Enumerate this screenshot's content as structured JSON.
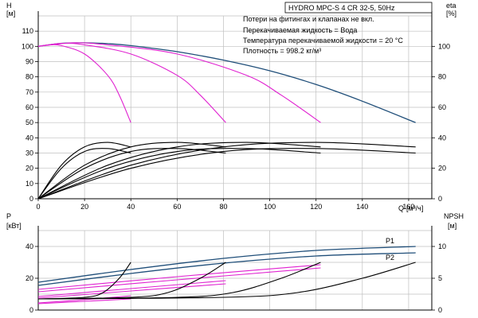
{
  "chart_data": [
    {
      "type": "line",
      "panel": "head",
      "title": "HYDRO MPC-S 4 CR 32-5, 50Hz",
      "info_lines": [
        "Потери на фитингах и клапанах не вкл.",
        "Перекачиваемая жидкость = Вода",
        "Температура перекачиваемой жидкости = 20 °C",
        "Плотность = 998.2 кг/м³"
      ],
      "ylabel": "H",
      "yunit": "[м]",
      "y2label": "eta",
      "y2unit": "[%]",
      "xlabel": "Q",
      "xunit": "[м³/ч]",
      "xlim": [
        0,
        170
      ],
      "ylim": [
        0,
        120
      ],
      "grid": true,
      "x_ticks": [
        "0",
        "20",
        "40",
        "60",
        "80",
        "100",
        "120",
        "140",
        "160"
      ],
      "y_ticks": [
        "0",
        "10",
        "20",
        "30",
        "40",
        "50",
        "60",
        "70",
        "80",
        "90",
        "100",
        "110"
      ],
      "y2_ticks": [
        "0",
        "20",
        "40",
        "60",
        "80",
        "100"
      ],
      "series": [
        {
          "color": "#1f4e79",
          "x": [
            0,
            10,
            20,
            30,
            40,
            60,
            80,
            100,
            120,
            140,
            163
          ],
          "y": [
            100,
            102,
            102.3,
            101.8,
            100.5,
            96.5,
            91,
            84,
            75,
            64,
            50
          ]
        },
        {
          "color": "#e020d0",
          "x": [
            0,
            5,
            10,
            20,
            30,
            35,
            40
          ],
          "y": [
            100,
            101,
            100.5,
            95,
            81,
            68,
            50
          ]
        },
        {
          "color": "#e020d0",
          "x": [
            0,
            10,
            20,
            40,
            60,
            70,
            81
          ],
          "y": [
            100,
            102,
            101,
            95,
            81,
            68,
            50
          ]
        },
        {
          "color": "#e020d0",
          "x": [
            0,
            15,
            30,
            60,
            90,
            105,
            122
          ],
          "y": [
            100,
            102.3,
            101,
            95,
            81,
            68,
            50
          ]
        },
        {
          "color": "#000000",
          "x": [
            0,
            10,
            20,
            30,
            40
          ],
          "y": [
            0,
            22,
            34,
            37,
            34
          ]
        },
        {
          "color": "#000000",
          "x": [
            0,
            20,
            40,
            60,
            81
          ],
          "y": [
            0,
            22,
            34,
            37,
            34
          ]
        },
        {
          "color": "#000000",
          "x": [
            0,
            30,
            60,
            90,
            122
          ],
          "y": [
            0,
            22,
            34,
            37,
            34
          ]
        },
        {
          "color": "#000000",
          "x": [
            0,
            40,
            80,
            120,
            163
          ],
          "y": [
            0,
            22,
            34,
            37,
            34
          ]
        },
        {
          "color": "#000000",
          "x": [
            0,
            10,
            20,
            30,
            40
          ],
          "y": [
            0,
            20,
            31,
            33,
            30
          ]
        },
        {
          "color": "#000000",
          "x": [
            0,
            20,
            40,
            60,
            81
          ],
          "y": [
            0,
            20,
            31,
            33,
            30
          ]
        },
        {
          "color": "#000000",
          "x": [
            0,
            30,
            60,
            90,
            122
          ],
          "y": [
            0,
            20,
            31,
            33,
            30
          ]
        },
        {
          "color": "#000000",
          "x": [
            0,
            40,
            80,
            120,
            163
          ],
          "y": [
            0,
            20,
            31,
            33,
            30
          ]
        }
      ]
    },
    {
      "type": "line",
      "panel": "power",
      "ylabel": "P",
      "yunit": "[кВт]",
      "y2label": "NPSH",
      "y2unit": "[м]",
      "xlim": [
        0,
        170
      ],
      "ylim": [
        0,
        50
      ],
      "grid": true,
      "y_ticks": [
        "0",
        "20",
        "40"
      ],
      "y2_ticks": [
        "0",
        "5",
        "10"
      ],
      "series": [
        {
          "name": "P1",
          "color": "#1f4e79",
          "x": [
            0,
            40,
            80,
            120,
            163
          ],
          "y": [
            17.5,
            25.5,
            32.5,
            37.5,
            40
          ]
        },
        {
          "name": "P2",
          "color": "#1f4e79",
          "x": [
            0,
            40,
            80,
            120,
            163
          ],
          "y": [
            15.5,
            23,
            29.5,
            34,
            36
          ]
        },
        {
          "color": "#e020d0",
          "x": [
            0,
            20,
            40
          ],
          "y": [
            4.5,
            6.5,
            9
          ]
        },
        {
          "color": "#e020d0",
          "x": [
            0,
            40,
            81
          ],
          "y": [
            8.5,
            13.5,
            18.5
          ]
        },
        {
          "color": "#e020d0",
          "x": [
            0,
            60,
            122
          ],
          "y": [
            13,
            21,
            28.5
          ]
        },
        {
          "color": "#e020d0",
          "x": [
            0,
            20,
            40
          ],
          "y": [
            4,
            5.5,
            7
          ]
        },
        {
          "color": "#e020d0",
          "x": [
            0,
            40,
            81
          ],
          "y": [
            7.5,
            12,
            16.5
          ]
        },
        {
          "color": "#e020d0",
          "x": [
            0,
            60,
            122
          ],
          "y": [
            11.5,
            19,
            26.5
          ]
        },
        {
          "color": "#000000",
          "x": [
            0,
            20,
            28,
            35,
            40
          ],
          "y": [
            7,
            8,
            11,
            20,
            30
          ]
        },
        {
          "color": "#000000",
          "x": [
            0,
            40,
            56,
            70,
            81
          ],
          "y": [
            7,
            8,
            11,
            20,
            30
          ]
        },
        {
          "color": "#000000",
          "x": [
            0,
            60,
            84,
            105,
            122
          ],
          "y": [
            7,
            8,
            11,
            20,
            30
          ]
        },
        {
          "color": "#000000",
          "x": [
            0,
            80,
            112,
            140,
            163
          ],
          "y": [
            7,
            8,
            11,
            20,
            30
          ]
        }
      ]
    }
  ]
}
